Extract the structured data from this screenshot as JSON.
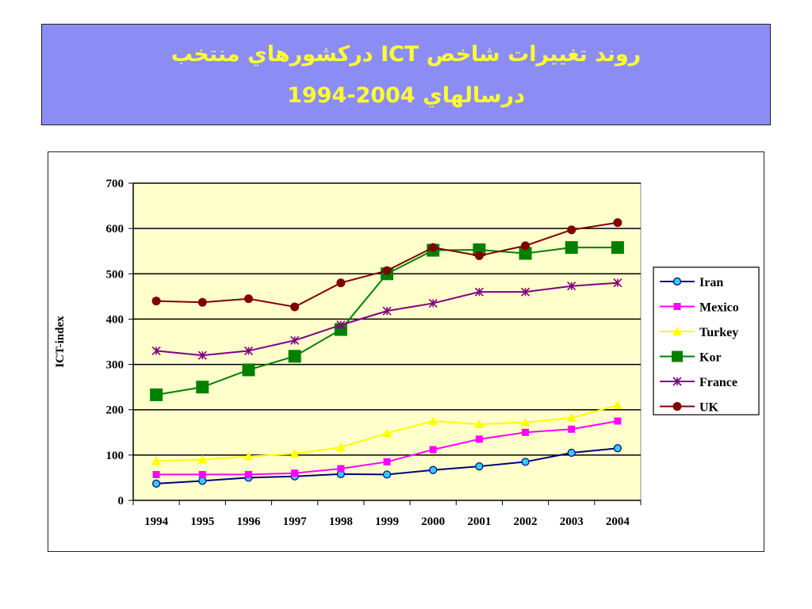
{
  "slide": {
    "title_line1": "روند تغييرات شاخص ICT دركشورهاي منتخب",
    "title_line2": "درسالهاي 2004-1994",
    "title_color": "#ffff33",
    "title_background": "#8c8cf5"
  },
  "chart_data": {
    "type": "line",
    "title": "",
    "xlabel": "",
    "ylabel": "ICT-index",
    "ylim": [
      0,
      700
    ],
    "yticks": [
      0,
      100,
      200,
      300,
      400,
      500,
      600,
      700
    ],
    "categories": [
      "1994",
      "1995",
      "1996",
      "1997",
      "1998",
      "1999",
      "2000",
      "2001",
      "2002",
      "2003",
      "2004"
    ],
    "plot_background": "#ffffcc",
    "grid": true,
    "legend_position": "right",
    "series": [
      {
        "name": "Iran",
        "color": "#000080",
        "marker_color": "#33ccff",
        "marker": "circle",
        "values": [
          37,
          43,
          50,
          53,
          58,
          57,
          67,
          75,
          85,
          105,
          115
        ]
      },
      {
        "name": "Mexico",
        "color": "#ff00ff",
        "marker_color": "#ff00ff",
        "marker": "square",
        "values": [
          57,
          57,
          57,
          60,
          70,
          85,
          112,
          135,
          150,
          157,
          175
        ]
      },
      {
        "name": "Turkey",
        "color": "#ffff00",
        "marker_color": "#ffff00",
        "marker": "triangle",
        "values": [
          87,
          90,
          97,
          103,
          117,
          148,
          175,
          168,
          172,
          182,
          210
        ]
      },
      {
        "name": "Kor",
        "color": "#008000",
        "marker_color": "#008000",
        "marker": "bigsquare",
        "values": [
          233,
          250,
          288,
          318,
          377,
          500,
          552,
          553,
          545,
          558,
          558
        ]
      },
      {
        "name": "France",
        "color": "#800080",
        "marker_color": "#800080",
        "marker": "star",
        "values": [
          330,
          320,
          330,
          353,
          387,
          418,
          435,
          460,
          460,
          473,
          480
        ]
      },
      {
        "name": "UK",
        "color": "#800000",
        "marker_color": "#800000",
        "marker": "dot",
        "values": [
          440,
          437,
          445,
          427,
          480,
          507,
          558,
          540,
          562,
          597,
          613
        ]
      }
    ]
  }
}
